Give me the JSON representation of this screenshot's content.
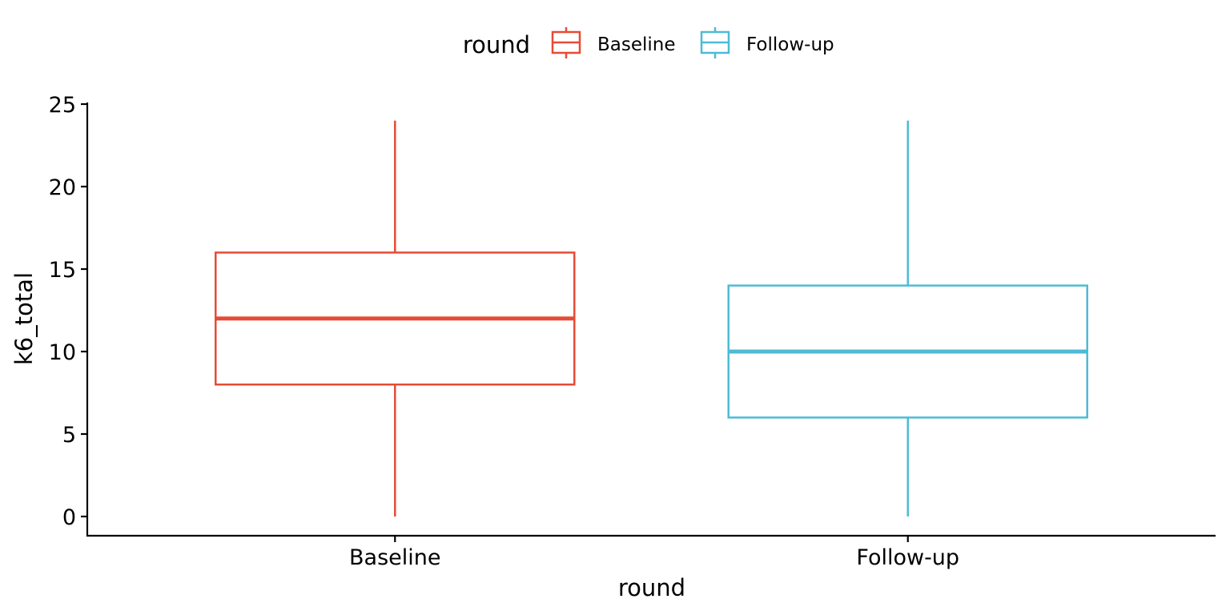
{
  "chart_data": {
    "type": "boxplot",
    "xlabel": "round",
    "ylabel": "k6_total",
    "ylim": [
      -1.2,
      25.2
    ],
    "yticks": [
      0,
      5,
      10,
      15,
      20,
      25
    ],
    "grid": false,
    "legend": {
      "title": "round",
      "placement": "top",
      "entries": [
        "Baseline",
        "Follow-up"
      ]
    },
    "categories": [
      "Baseline",
      "Follow-up"
    ],
    "series": [
      {
        "name": "Baseline",
        "color": "#E64B35",
        "min": 0,
        "q1": 8,
        "median": 12,
        "q3": 16,
        "max": 24
      },
      {
        "name": "Follow-up",
        "color": "#4DBBD5",
        "min": 0,
        "q1": 6,
        "median": 10,
        "q3": 14,
        "max": 24
      }
    ]
  }
}
